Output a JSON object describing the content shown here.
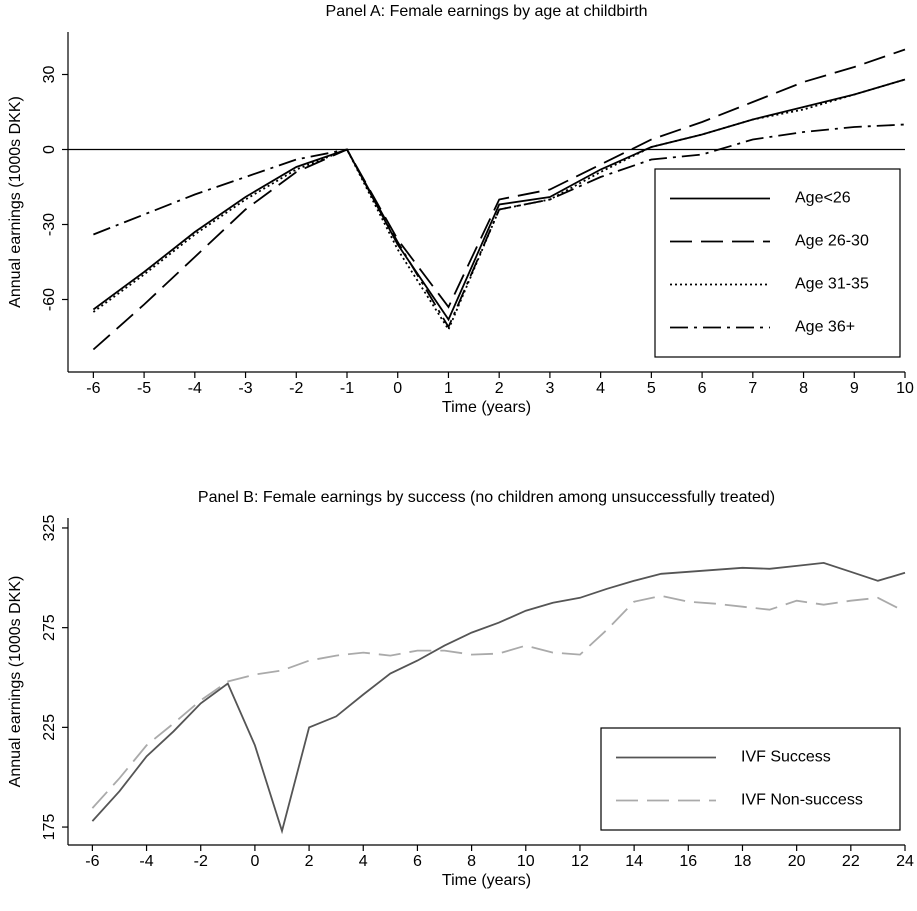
{
  "chart_data": [
    {
      "type": "line",
      "title": "Panel A: Female earnings by age at childbirth",
      "xlabel": "Time (years)",
      "ylabel": "Annual earnings (1000s DKK)",
      "x": [
        -6,
        -5,
        -4,
        -3,
        -2,
        -1,
        0,
        1,
        2,
        3,
        4,
        5,
        6,
        7,
        8,
        9,
        10
      ],
      "xlim": [
        -6.5,
        10
      ],
      "xticks": [
        -6,
        -5,
        -4,
        -3,
        -2,
        -1,
        0,
        1,
        2,
        3,
        4,
        5,
        6,
        7,
        8,
        9,
        10
      ],
      "ylim": [
        -89,
        47
      ],
      "yticks": [
        -60,
        -30,
        0,
        30
      ],
      "zero_line": true,
      "legend": "lower right",
      "series": [
        {
          "name": "Age<26",
          "color": "#000000",
          "style": "solid",
          "values": [
            -64,
            -49,
            -33,
            -19,
            -7,
            0,
            -38,
            -68,
            -22,
            -19,
            -8,
            1,
            6,
            12,
            17,
            22,
            28
          ]
        },
        {
          "name": "Age 26-30",
          "color": "#000000",
          "style": "dash",
          "values": [
            -80,
            -62,
            -43,
            -24,
            -9,
            0,
            -36,
            -63,
            -20,
            -16,
            -6,
            4,
            11,
            19,
            27,
            33,
            40
          ]
        },
        {
          "name": "Age 31-35",
          "color": "#000000",
          "style": "dot",
          "values": [
            -65,
            -50,
            -34,
            -20,
            -8,
            0,
            -40,
            -72,
            -24,
            -20,
            -9,
            1,
            6,
            12,
            16,
            22,
            28
          ]
        },
        {
          "name": "Age 36+",
          "color": "#000000",
          "style": "dashdot",
          "values": [
            -34,
            -26,
            -18,
            -11,
            -4,
            0,
            -37,
            -71,
            -24,
            -20,
            -11,
            -4,
            -2,
            4,
            7,
            9,
            10
          ]
        }
      ]
    },
    {
      "type": "line",
      "title": "Panel B: Female earnings by success (no children among unsuccessfully treated)",
      "xlabel": "Time (years)",
      "ylabel": "Annual earnings (1000s DKK)",
      "x": [
        -6,
        -5,
        -4,
        -3,
        -2,
        -1,
        0,
        1,
        2,
        3,
        4,
        5,
        6,
        7,
        8,
        9,
        10,
        11,
        12,
        13,
        14,
        15,
        16,
        17,
        18,
        19,
        20,
        21,
        22,
        23,
        24
      ],
      "xlim": [
        -6.9,
        24
      ],
      "xticks": [
        -6,
        -4,
        -2,
        0,
        2,
        4,
        6,
        8,
        10,
        12,
        14,
        16,
        18,
        20,
        22,
        24
      ],
      "ylim": [
        166,
        330
      ],
      "yticks": [
        175,
        225,
        275,
        325
      ],
      "zero_line": false,
      "legend": "lower right",
      "series": [
        {
          "name": "IVF Success",
          "color": "#555555",
          "style": "solid",
          "values": [
            178,
            193,
            210.5,
            223,
            237,
            247,
            216,
            173,
            225,
            230.5,
            241.5,
            252,
            258.5,
            266,
            272.5,
            277.5,
            283.5,
            287.5,
            290,
            294.5,
            298.5,
            302,
            303,
            304,
            305,
            304.5,
            306,
            307.5,
            303,
            298.5,
            302.5
          ]
        },
        {
          "name": "IVF Non-success",
          "color": "#aaaaaa",
          "style": "dash",
          "values": [
            184.5,
            199.5,
            216,
            227,
            238.5,
            248,
            251.5,
            253.5,
            258.5,
            261,
            262.5,
            261,
            263.5,
            263.5,
            261.5,
            262,
            266,
            262.5,
            261.5,
            274,
            288,
            291,
            288,
            287,
            285.5,
            284,
            288.5,
            286.5,
            288.5,
            290,
            283
          ]
        }
      ]
    }
  ]
}
